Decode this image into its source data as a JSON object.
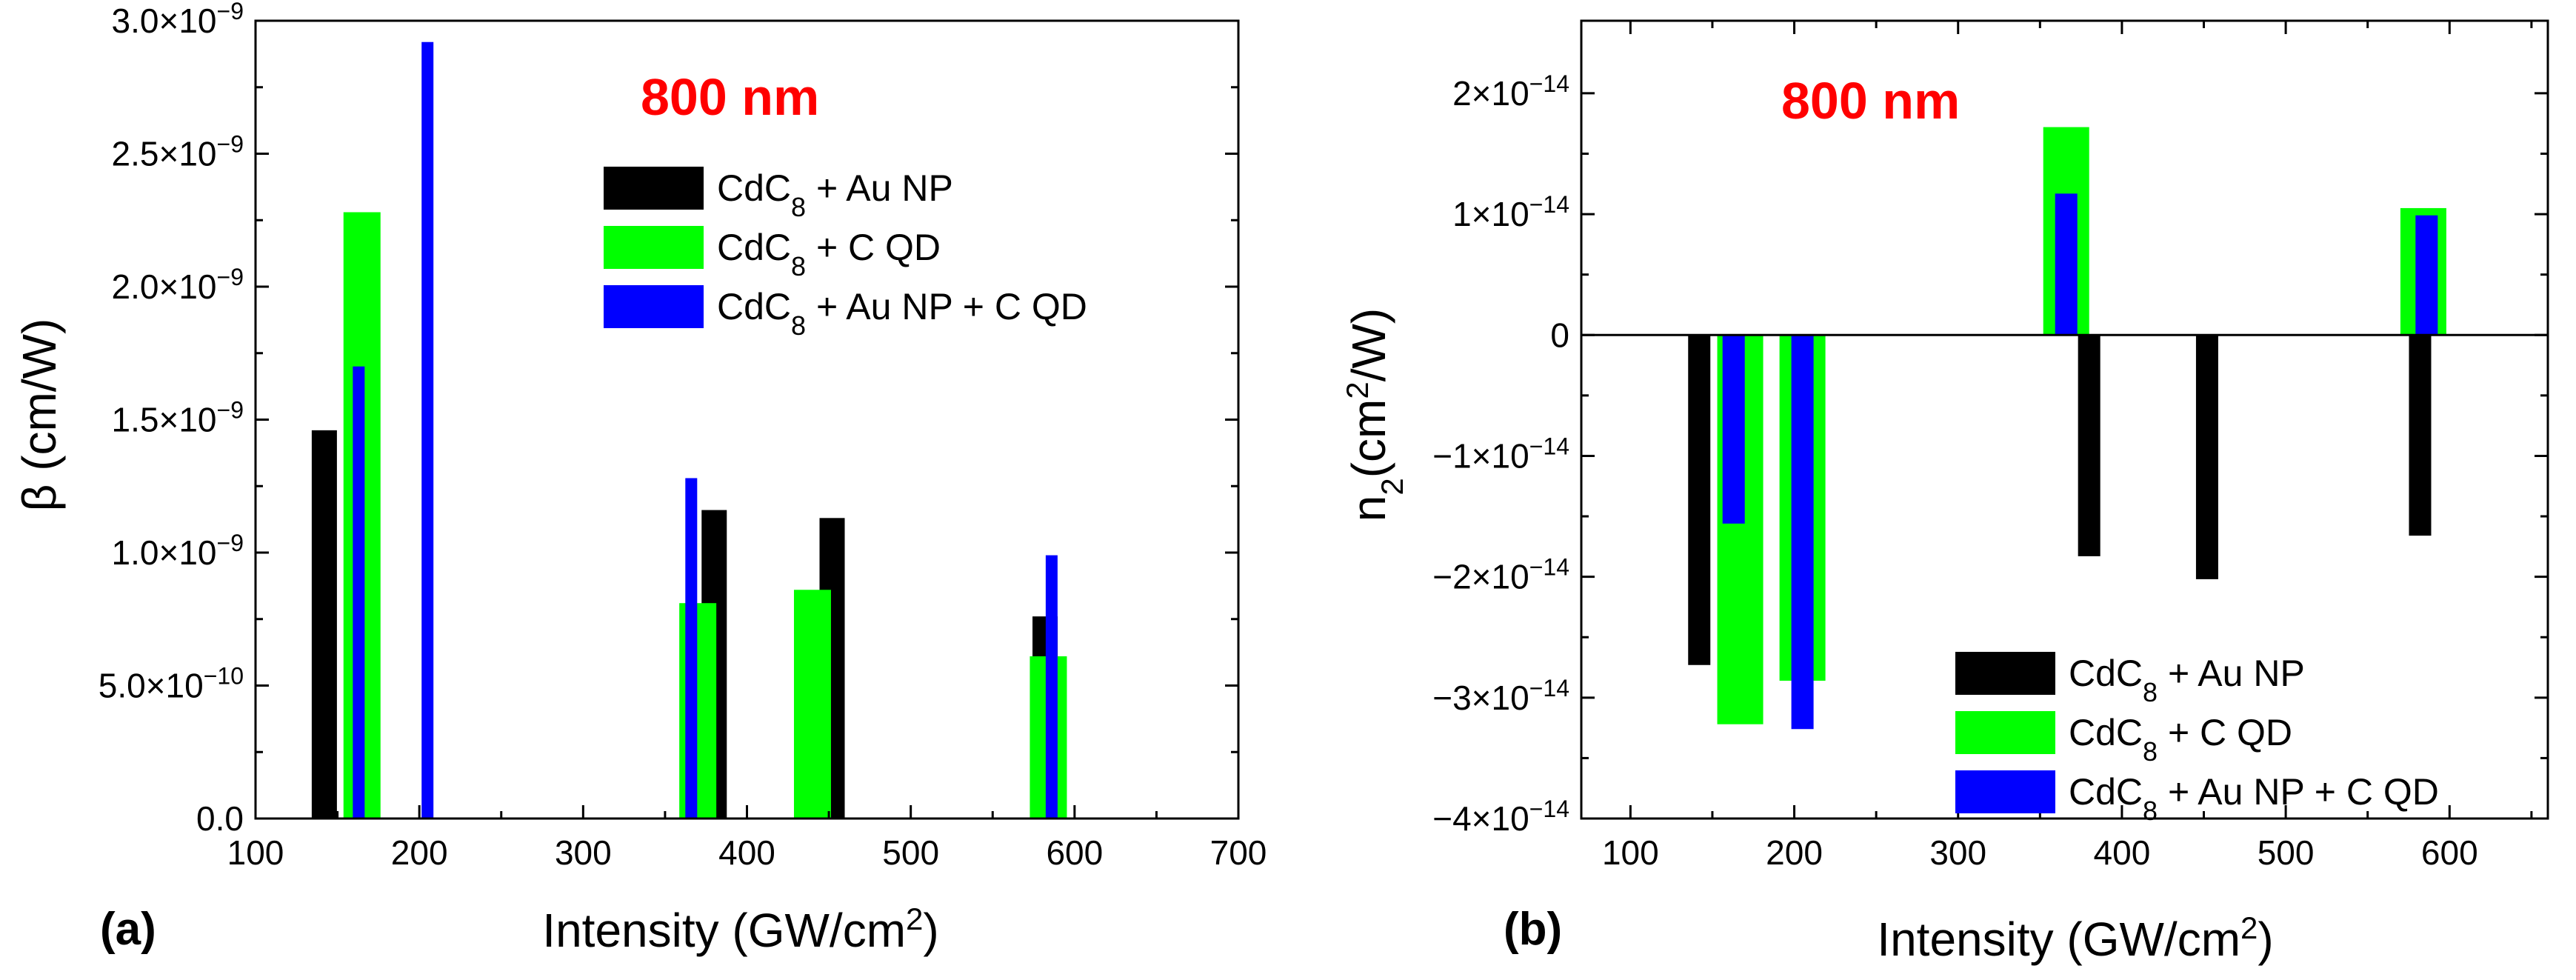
{
  "chart_data": [
    {
      "type": "bar",
      "panel_label": "(a)",
      "annotation": "800 nm",
      "xlabel_main": "Intensity (GW/cm",
      "xlabel_sup": "2",
      "xlabel_tail": ")",
      "ylabel": "β (cm/W)",
      "xlim": [
        100,
        700
      ],
      "ylim": [
        0,
        3e-09
      ],
      "x_ticks": [
        100,
        200,
        300,
        400,
        500,
        600,
        700
      ],
      "y_ticks": [
        {
          "value": 0,
          "mant": "0.0",
          "exp": ""
        },
        {
          "value": 5e-10,
          "mant": "5.0×10",
          "exp": "−10"
        },
        {
          "value": 1e-09,
          "mant": "1.0×10",
          "exp": "−9"
        },
        {
          "value": 1.5e-09,
          "mant": "1.5×10",
          "exp": "−9"
        },
        {
          "value": 2e-09,
          "mant": "2.0×10",
          "exp": "−9"
        },
        {
          "value": 2.5e-09,
          "mant": "2.5×10",
          "exp": "−9"
        },
        {
          "value": 3e-09,
          "mant": "3.0×10",
          "exp": "−9"
        }
      ],
      "grid": false,
      "legend_position": "top-right",
      "series": [
        {
          "name": "CdC8 + Au NP",
          "legend_main": "CdC",
          "legend_sub": "8",
          "legend_tail": " + Au NP",
          "color": "#000000",
          "x": [
            142,
            380,
            452,
            582
          ],
          "values": [
            1.46e-09,
            1.16e-09,
            1.13e-09,
            7.6e-10
          ]
        },
        {
          "name": "CdC8 + C QD",
          "legend_main": "CdC",
          "legend_sub": "8",
          "legend_tail": " + C QD",
          "color": "#00ff00",
          "x": [
            165,
            370,
            440,
            584
          ],
          "values": [
            2.28e-09,
            8.1e-10,
            8.6e-10,
            6.1e-10
          ]
        },
        {
          "name": "CdC8 + Au NP + C QD",
          "legend_main": "CdC",
          "legend_sub": "8",
          "legend_tail": " + Au NP + C QD",
          "color": "#0000ff",
          "x": [
            163,
            205,
            366,
            586
          ],
          "values": [
            1.7e-09,
            2.92e-09,
            1.28e-09,
            9.9e-10
          ]
        }
      ]
    },
    {
      "type": "bar",
      "panel_label": "(b)",
      "annotation": "800 nm",
      "xlabel_main": "Intensity (GW/cm",
      "xlabel_sup": "2",
      "xlabel_tail": ")",
      "ylabel_main": "n",
      "ylabel_sub": "2",
      "ylabel_mid": "(cm",
      "ylabel_sup": "2",
      "ylabel_tail": "/W)",
      "xlim": [
        70,
        660
      ],
      "ylim": [
        -4e-14,
        2.6e-14
      ],
      "x_ticks": [
        100,
        200,
        300,
        400,
        500,
        600
      ],
      "y_ticks": [
        {
          "value": -4e-14,
          "mant": "−4×10",
          "exp": "−14"
        },
        {
          "value": -3e-14,
          "mant": "−3×10",
          "exp": "−14"
        },
        {
          "value": -2e-14,
          "mant": "−2×10",
          "exp": "−14"
        },
        {
          "value": -1e-14,
          "mant": "−1×10",
          "exp": "−14"
        },
        {
          "value": 0,
          "mant": "0",
          "exp": ""
        },
        {
          "value": 1e-14,
          "mant": "1×10",
          "exp": "−14"
        },
        {
          "value": 2e-14,
          "mant": "2×10",
          "exp": "−14"
        }
      ],
      "grid": false,
      "legend_position": "bottom-right",
      "series": [
        {
          "name": "CdC8 + Au NP",
          "legend_main": "CdC",
          "legend_sub": "8",
          "legend_tail": " + Au NP",
          "color": "#000000",
          "x": [
            142,
            380,
            452,
            582
          ],
          "values": [
            -2.73e-14,
            -1.83e-14,
            -2.02e-14,
            -1.66e-14
          ]
        },
        {
          "name": "CdC8 + C QD",
          "legend_main": "CdC",
          "legend_sub": "8",
          "legend_tail": " + C QD",
          "color": "#00ff00",
          "x": [
            167,
            205,
            366,
            584
          ],
          "values": [
            -3.22e-14,
            -2.86e-14,
            1.72e-14,
            1.05e-14
          ]
        },
        {
          "name": "CdC8 + Au NP + C QD",
          "legend_main": "CdC",
          "legend_sub": "8",
          "legend_tail": " + Au NP + C QD",
          "color": "#0000ff",
          "x": [
            163,
            205,
            366,
            586
          ],
          "values": [
            -1.56e-14,
            -3.26e-14,
            1.17e-14,
            9.9e-15
          ]
        }
      ]
    }
  ]
}
